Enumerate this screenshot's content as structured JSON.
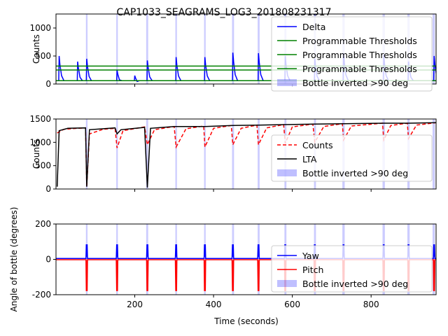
{
  "chart_data": {
    "type": "line",
    "title": "CAP1033_SEAGRAMS_LOG3_201808231317",
    "xlabel": "Time (seconds)",
    "xlim": [
      0,
      965
    ],
    "xticks": [
      200,
      400,
      600,
      800
    ],
    "event_times": [
      78,
      155,
      232,
      305,
      378,
      449,
      514,
      582,
      657,
      730,
      832,
      895,
      960
    ],
    "inverted_regions": [
      [
        76,
        80
      ],
      [
        153,
        157
      ],
      [
        229,
        234
      ],
      [
        303,
        307
      ],
      [
        376,
        380
      ],
      [
        447,
        452
      ],
      [
        512,
        517
      ],
      [
        580,
        585
      ],
      [
        655,
        660
      ],
      [
        727,
        733
      ],
      [
        829,
        835
      ],
      [
        892,
        898
      ],
      [
        956,
        962
      ]
    ],
    "panels": [
      {
        "ylabel": "Counts",
        "ylim": [
          0,
          1250
        ],
        "yticks": [
          0,
          500,
          1000
        ],
        "legend_position": "upper right",
        "series": [
          {
            "name": "Delta",
            "color": "#0000ff",
            "style": "solid",
            "baseline": 60,
            "peaks": [
              [
                8,
                500
              ],
              [
                55,
                400
              ],
              [
                78,
                450
              ],
              [
                155,
                250
              ],
              [
                200,
                150
              ],
              [
                232,
                420
              ],
              [
                305,
                480
              ],
              [
                378,
                480
              ],
              [
                449,
                560
              ],
              [
                514,
                550
              ],
              [
                582,
                500
              ],
              [
                657,
                450
              ],
              [
                730,
                550
              ],
              [
                832,
                520
              ],
              [
                895,
                400
              ],
              [
                960,
                500
              ]
            ]
          },
          {
            "name": "Programmable Thresholds",
            "color": "#008000",
            "style": "solid",
            "value": 320
          },
          {
            "name": "Programmable Thresholds",
            "color": "#008000",
            "style": "solid",
            "value": 250
          },
          {
            "name": "Programmable Thresholds",
            "color": "#008000",
            "style": "solid",
            "value": 60
          },
          {
            "name": "Bottle inverted >90 deg",
            "color": "#0000ff",
            "style": "band",
            "alpha": 0.2
          }
        ]
      },
      {
        "ylabel": "Counts",
        "ylim": [
          0,
          1500
        ],
        "yticks": [
          0,
          500,
          1000,
          1500
        ],
        "legend_position": "center right",
        "series": [
          {
            "name": "Counts",
            "color": "#ff0000",
            "style": "dashed",
            "points": [
              [
                3,
                1200
              ],
              [
                20,
                1280
              ],
              [
                55,
                1300
              ],
              [
                75,
                1310
              ],
              [
                78,
                50
              ],
              [
                85,
                1180
              ],
              [
                120,
                1280
              ],
              [
                150,
                1300
              ],
              [
                155,
                880
              ],
              [
                170,
                1250
              ],
              [
                225,
                1330
              ],
              [
                232,
                950
              ],
              [
                250,
                1270
              ],
              [
                300,
                1340
              ],
              [
                305,
                900
              ],
              [
                330,
                1290
              ],
              [
                375,
                1350
              ],
              [
                378,
                900
              ],
              [
                400,
                1300
              ],
              [
                445,
                1360
              ],
              [
                449,
                950
              ],
              [
                470,
                1300
              ],
              [
                510,
                1370
              ],
              [
                514,
                950
              ],
              [
                535,
                1310
              ],
              [
                578,
                1380
              ],
              [
                582,
                980
              ],
              [
                600,
                1330
              ],
              [
                652,
                1390
              ],
              [
                657,
                1000
              ],
              [
                680,
                1340
              ],
              [
                727,
                1400
              ],
              [
                730,
                1050
              ],
              [
                750,
                1350
              ],
              [
                829,
                1410
              ],
              [
                832,
                1050
              ],
              [
                850,
                1360
              ],
              [
                892,
                1410
              ],
              [
                895,
                1080
              ],
              [
                915,
                1370
              ],
              [
                965,
                1420
              ]
            ]
          },
          {
            "name": "LTA",
            "color": "#000000",
            "style": "solid",
            "points": [
              [
                3,
                50
              ],
              [
                8,
                1250
              ],
              [
                30,
                1300
              ],
              [
                75,
                1310
              ],
              [
                78,
                50
              ],
              [
                85,
                1270
              ],
              [
                150,
                1310
              ],
              [
                155,
                1180
              ],
              [
                165,
                1270
              ],
              [
                225,
                1320
              ],
              [
                232,
                30
              ],
              [
                240,
                1300
              ],
              [
                300,
                1340
              ],
              [
                378,
                1340
              ],
              [
                449,
                1360
              ],
              [
                514,
                1370
              ],
              [
                582,
                1380
              ],
              [
                657,
                1390
              ],
              [
                730,
                1400
              ],
              [
                832,
                1410
              ],
              [
                895,
                1410
              ],
              [
                965,
                1420
              ]
            ]
          },
          {
            "name": "Bottle inverted >90 deg",
            "color": "#0000ff",
            "style": "band",
            "alpha": 0.2
          }
        ]
      },
      {
        "ylabel": "Angle of bottle (degrees)",
        "ylim": [
          -200,
          200
        ],
        "yticks": [
          -200,
          0,
          200
        ],
        "legend_position": "lower right",
        "series": [
          {
            "name": "Yaw",
            "color": "#0000ff",
            "style": "solid",
            "baseline": 5,
            "peak": 85
          },
          {
            "name": "Pitch",
            "color": "#ff0000",
            "style": "solid",
            "baseline": -2,
            "trough": -180
          },
          {
            "name": "Bottle inverted >90 deg",
            "color": "#0000ff",
            "style": "band",
            "alpha": 0.2
          }
        ]
      }
    ]
  }
}
